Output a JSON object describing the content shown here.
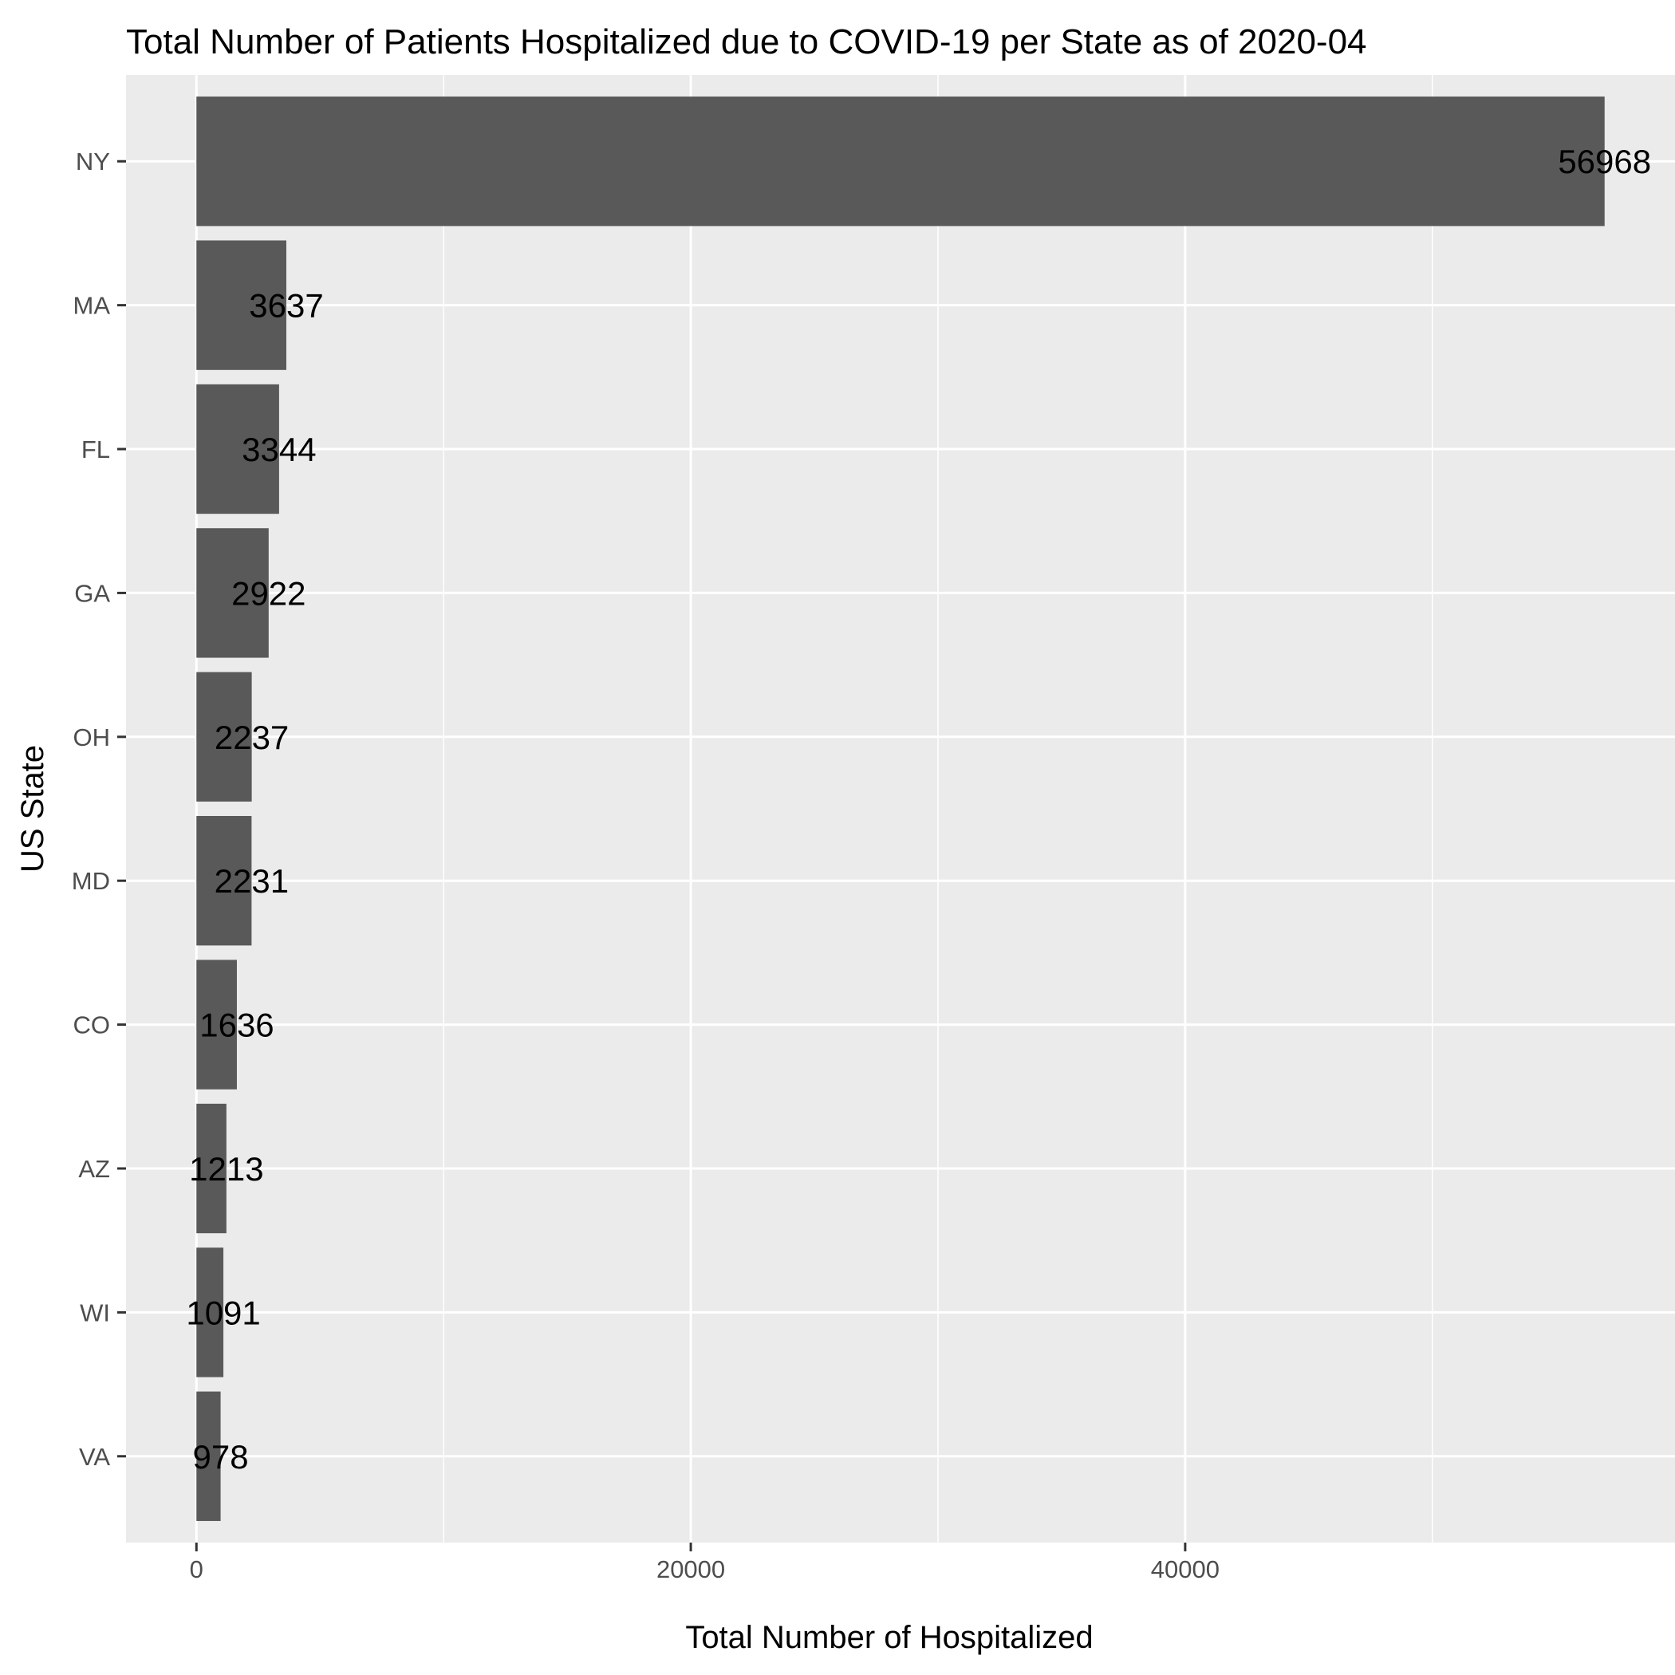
{
  "chart_data": {
    "type": "bar",
    "orientation": "horizontal",
    "title": "Total Number of Patients Hospitalized due to COVID-19 per State as of  2020-04",
    "xlabel": "Total Number of Hospitalized",
    "ylabel": "US State",
    "categories": [
      "NY",
      "MA",
      "FL",
      "GA",
      "OH",
      "MD",
      "CO",
      "AZ",
      "WI",
      "VA"
    ],
    "values": [
      56968,
      3637,
      3344,
      2922,
      2237,
      2231,
      1636,
      1213,
      1091,
      978
    ],
    "data_labels": [
      "56968",
      "3637",
      "3344",
      "2922",
      "2237",
      "2231",
      "1636",
      "1213",
      "1091",
      "978"
    ],
    "x_ticks": [
      0,
      20000,
      40000
    ],
    "x_tick_labels": [
      "0",
      "20000",
      "40000"
    ],
    "xlim": [
      -2848,
      59816
    ],
    "grid": true,
    "colors": {
      "bar": "#595959",
      "panel": "#ebebeb",
      "grid": "#ffffff"
    }
  }
}
